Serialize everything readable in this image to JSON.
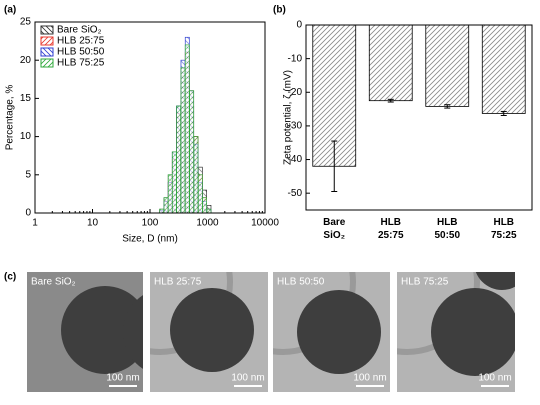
{
  "chart_data": [
    {
      "type": "bar",
      "label": "(a)",
      "x_label": "Size, D (nm)",
      "y_label": "Percentage, %",
      "log_x": true,
      "xlim": [
        1,
        10000
      ],
      "xticks": [
        1,
        10,
        100,
        1000,
        10000
      ],
      "ylim": [
        0,
        25
      ],
      "yticks": [
        0,
        5,
        10,
        15,
        20,
        25
      ],
      "legend": "upper left",
      "x": [
        160,
        190,
        225,
        265,
        315,
        375,
        445,
        530,
        630,
        750,
        890,
        1060
      ],
      "series": [
        {
          "name": "Bare SiO₂",
          "color": "#333333",
          "values": [
            0.5,
            2,
            5,
            8,
            14,
            18,
            17,
            14,
            10,
            6,
            3,
            1
          ]
        },
        {
          "name": "HLB 25:75",
          "color": "#e8392f",
          "values": [
            0.3,
            1.5,
            4,
            7,
            13,
            19,
            21,
            16,
            10,
            5,
            2,
            0.5
          ]
        },
        {
          "name": "HLB 50:50",
          "color": "#2f3fd0",
          "values": [
            0.3,
            1.5,
            4,
            8,
            14,
            20,
            23,
            16,
            9,
            4,
            1.5,
            0.5
          ]
        },
        {
          "name": "HLB 75:25",
          "color": "#2ea83a",
          "values": [
            0.5,
            2,
            5,
            8,
            14,
            19,
            22,
            16,
            10,
            5,
            2,
            0.5
          ]
        }
      ]
    },
    {
      "type": "bar",
      "label": "(b)",
      "y_label": "Zeta potential, ζ (mV)",
      "categories": [
        "Bare SiO₂",
        "HLB 25:75",
        "HLB 50:50",
        "HLB 75:25"
      ],
      "values": [
        -42,
        -22.5,
        -24.2,
        -26.3
      ],
      "errors": [
        7.5,
        0.4,
        0.5,
        0.6
      ],
      "ylim": [
        -55,
        0
      ],
      "yticks": [
        0,
        -10,
        -20,
        -30,
        -40,
        -50
      ],
      "color": "#888888"
    }
  ],
  "micrographs": {
    "label": "(c)",
    "panels": [
      {
        "title": "Bare SiO₂",
        "scale_bar": "100 nm"
      },
      {
        "title": "HLB 25:75",
        "scale_bar": "100 nm"
      },
      {
        "title": "HLB 50:50",
        "scale_bar": "100 nm"
      },
      {
        "title": "HLB 75:25",
        "scale_bar": "100 nm"
      }
    ]
  }
}
